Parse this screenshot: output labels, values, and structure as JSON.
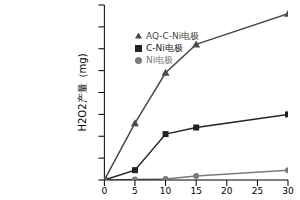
{
  "chart_data": {
    "type": "line",
    "y_label": "H2O2产量（mg)",
    "x": [
      0,
      5,
      10,
      15,
      30
    ],
    "series": [
      {
        "name": "C-Ni电极",
        "color": "#222222",
        "marker": "square",
        "values": [
          0,
          0.045,
          0.21,
          0.24,
          0.3
        ]
      },
      {
        "name": "Ni电极",
        "color": "#7a7a7a",
        "marker": "circle",
        "values": [
          0,
          0.002,
          0.005,
          0.018,
          0.045
        ]
      },
      {
        "name": "AQ-C-Ni电极",
        "color": "#4a4a4a",
        "marker": "triangle",
        "values": [
          0,
          0.26,
          0.49,
          0.62,
          0.76
        ]
      }
    ],
    "xlim": [
      0,
      30
    ],
    "xticks": [
      0,
      5,
      10,
      15,
      20,
      25,
      30
    ],
    "ylim": [
      0,
      0.8
    ],
    "yticks": [
      0,
      0.1,
      0.2,
      0.3,
      0.4,
      0.5,
      0.6,
      0.7,
      0.8
    ],
    "tick_labels": "x",
    "legend": "top",
    "grid": false
  }
}
